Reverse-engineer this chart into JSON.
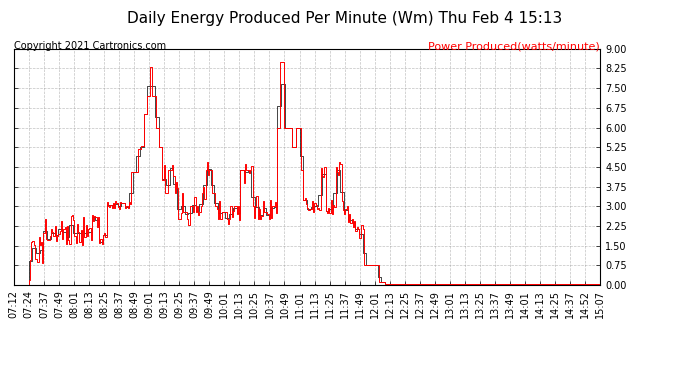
{
  "title": "Daily Energy Produced Per Minute (Wm) Thu Feb 4 15:13",
  "copyright": "Copyright 2021 Cartronics.com",
  "legend_label": "Power Produced(watts/minute)",
  "ylim": [
    0.0,
    9.0
  ],
  "yticks": [
    0.0,
    0.75,
    1.5,
    2.25,
    3.0,
    3.75,
    4.5,
    5.25,
    6.0,
    6.75,
    7.5,
    8.25,
    9.0
  ],
  "line_color": "#ff0000",
  "step_color": "#000000",
  "background_color": "#ffffff",
  "grid_color": "#999999",
  "title_fontsize": 11,
  "tick_fontsize": 7,
  "copyright_fontsize": 7,
  "legend_fontsize": 8,
  "x_tick_labels": [
    "07:12",
    "07:24",
    "07:37",
    "07:49",
    "08:01",
    "08:13",
    "08:25",
    "08:37",
    "08:49",
    "09:01",
    "09:13",
    "09:25",
    "09:37",
    "09:49",
    "10:01",
    "10:13",
    "10:25",
    "10:37",
    "10:49",
    "11:01",
    "11:13",
    "11:25",
    "11:37",
    "11:49",
    "12:01",
    "12:13",
    "12:25",
    "12:37",
    "12:49",
    "13:01",
    "13:13",
    "13:25",
    "13:37",
    "13:49",
    "14:01",
    "14:13",
    "14:25",
    "14:37",
    "14:52",
    "15:07"
  ],
  "segment_data": [
    [
      0,
      12,
      0.0
    ],
    [
      12,
      13,
      0.2
    ],
    [
      13,
      15,
      1.2
    ],
    [
      15,
      25,
      1.5
    ],
    [
      25,
      37,
      2.2
    ],
    [
      37,
      50,
      2.2
    ],
    [
      50,
      60,
      2.2
    ],
    [
      60,
      75,
      2.2
    ],
    [
      75,
      95,
      3.0
    ],
    [
      95,
      100,
      4.3
    ],
    [
      100,
      103,
      5.2
    ],
    [
      103,
      105,
      5.3
    ],
    [
      105,
      108,
      6.5
    ],
    [
      108,
      110,
      7.2
    ],
    [
      110,
      112,
      8.3
    ],
    [
      112,
      115,
      7.2
    ],
    [
      115,
      117,
      6.0
    ],
    [
      117,
      120,
      5.25
    ],
    [
      120,
      122,
      4.0
    ],
    [
      122,
      125,
      3.5
    ],
    [
      125,
      128,
      4.4
    ],
    [
      128,
      130,
      4.4
    ],
    [
      130,
      133,
      3.5
    ],
    [
      133,
      136,
      2.5
    ],
    [
      136,
      140,
      2.8
    ],
    [
      140,
      142,
      2.5
    ],
    [
      142,
      145,
      3.0
    ],
    [
      145,
      148,
      2.8
    ],
    [
      148,
      152,
      3.0
    ],
    [
      152,
      155,
      3.5
    ],
    [
      155,
      158,
      4.4
    ],
    [
      158,
      160,
      4.4
    ],
    [
      160,
      162,
      3.5
    ],
    [
      162,
      165,
      3.0
    ],
    [
      165,
      168,
      2.5
    ],
    [
      168,
      172,
      2.8
    ],
    [
      172,
      175,
      2.5
    ],
    [
      175,
      178,
      3.0
    ],
    [
      178,
      183,
      3.0
    ],
    [
      183,
      188,
      4.4
    ],
    [
      188,
      193,
      4.4
    ],
    [
      193,
      197,
      3.0
    ],
    [
      197,
      200,
      2.5
    ],
    [
      200,
      205,
      2.8
    ],
    [
      205,
      208,
      2.5
    ],
    [
      208,
      213,
      3.0
    ],
    [
      213,
      215,
      6.0
    ],
    [
      215,
      218,
      8.5
    ],
    [
      218,
      225,
      6.0
    ],
    [
      225,
      228,
      5.25
    ],
    [
      228,
      232,
      6.0
    ],
    [
      232,
      234,
      4.4
    ],
    [
      234,
      236,
      3.5
    ],
    [
      236,
      240,
      3.0
    ],
    [
      240,
      248,
      3.0
    ],
    [
      248,
      250,
      4.4
    ],
    [
      250,
      252,
      4.4
    ],
    [
      252,
      255,
      3.0
    ],
    [
      255,
      260,
      3.0
    ],
    [
      260,
      263,
      4.4
    ],
    [
      263,
      265,
      4.4
    ],
    [
      265,
      270,
      3.0
    ],
    [
      270,
      273,
      2.5
    ],
    [
      273,
      278,
      2.25
    ],
    [
      278,
      283,
      2.0
    ],
    [
      283,
      295,
      0.75
    ],
    [
      295,
      300,
      0.1
    ],
    [
      300,
      483,
      0.05
    ]
  ]
}
